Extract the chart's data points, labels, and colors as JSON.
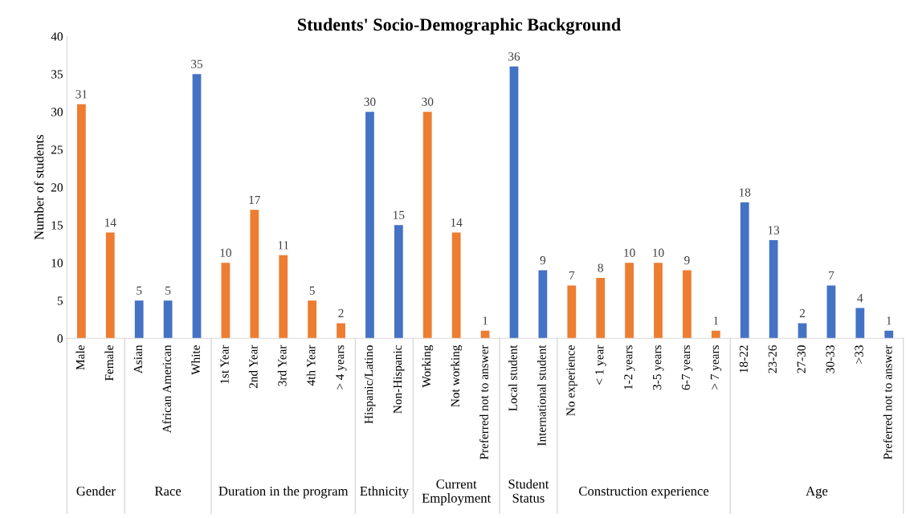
{
  "chart_data": {
    "type": "bar",
    "title": "Students' Socio-Demographic Background",
    "ylabel": "Number of students",
    "categories": [
      "Male",
      "Female",
      "Asian",
      "African American",
      "White",
      "1st Year",
      "2nd Year",
      "3rd Year",
      "4th Year",
      "> 4 years",
      "Hispanic/Latino",
      "Non-Hispanic",
      "Working",
      "Not working",
      "Preferred not to answer",
      "Local student",
      "International student",
      "No experience",
      "< 1 year",
      "1-2 years",
      "3-5 years",
      "6-7 years",
      "> 7 years",
      "18-22",
      "23-26",
      "27-30",
      "30-33",
      ">33",
      "Preferred not to answer"
    ],
    "values": [
      31,
      14,
      5,
      5,
      35,
      10,
      17,
      11,
      5,
      2,
      30,
      15,
      30,
      14,
      1,
      36,
      9,
      7,
      8,
      10,
      10,
      9,
      1,
      18,
      13,
      2,
      7,
      4,
      1
    ],
    "colors": [
      "#ed7d31",
      "#ed7d31",
      "#4472c4",
      "#4472c4",
      "#4472c4",
      "#ed7d31",
      "#ed7d31",
      "#ed7d31",
      "#ed7d31",
      "#ed7d31",
      "#4472c4",
      "#4472c4",
      "#ed7d31",
      "#ed7d31",
      "#ed7d31",
      "#4472c4",
      "#4472c4",
      "#ed7d31",
      "#ed7d31",
      "#ed7d31",
      "#ed7d31",
      "#ed7d31",
      "#ed7d31",
      "#4472c4",
      "#4472c4",
      "#4472c4",
      "#4472c4",
      "#4472c4",
      "#4472c4"
    ],
    "annotations": [
      "Gender",
      "Race",
      "Duration in the program",
      "Ethnicity",
      "Current Employment",
      "Student Status",
      "Construction experience",
      "Age"
    ],
    "ylim": [
      0,
      40
    ],
    "yticks": [
      0,
      5,
      10,
      15,
      20,
      25,
      30,
      35,
      40
    ],
    "grid": false,
    "data_labels": true
  }
}
